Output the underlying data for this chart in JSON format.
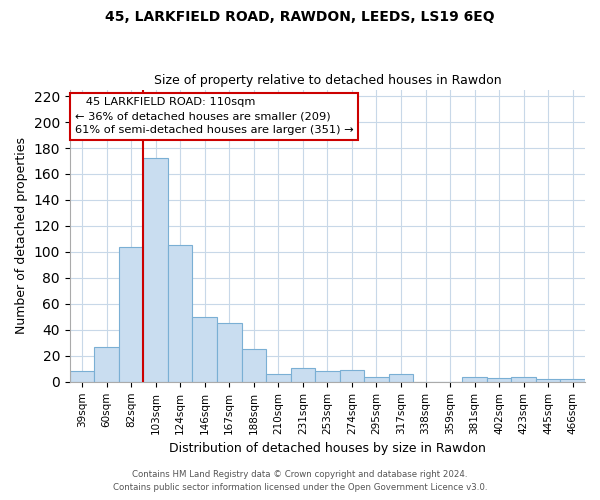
{
  "title": "45, LARKFIELD ROAD, RAWDON, LEEDS, LS19 6EQ",
  "subtitle": "Size of property relative to detached houses in Rawdon",
  "xlabel": "Distribution of detached houses by size in Rawdon",
  "ylabel": "Number of detached properties",
  "bar_labels": [
    "39sqm",
    "60sqm",
    "82sqm",
    "103sqm",
    "124sqm",
    "146sqm",
    "167sqm",
    "188sqm",
    "210sqm",
    "231sqm",
    "253sqm",
    "274sqm",
    "295sqm",
    "317sqm",
    "338sqm",
    "359sqm",
    "381sqm",
    "402sqm",
    "423sqm",
    "445sqm",
    "466sqm"
  ],
  "bar_values": [
    8,
    27,
    104,
    172,
    105,
    50,
    45,
    25,
    6,
    11,
    8,
    9,
    4,
    6,
    0,
    0,
    4,
    3,
    4,
    2,
    2
  ],
  "bar_color": "#c9ddf0",
  "bar_edge_color": "#7aafd4",
  "vline_x": 3.0,
  "vline_color": "#cc0000",
  "annotation_title": "45 LARKFIELD ROAD: 110sqm",
  "annotation_line1": "← 36% of detached houses are smaller (209)",
  "annotation_line2": "61% of semi-detached houses are larger (351) →",
  "annotation_box_color": "#ffffff",
  "annotation_box_edge": "#cc0000",
  "ylim": [
    0,
    225
  ],
  "yticks": [
    0,
    20,
    40,
    60,
    80,
    100,
    120,
    140,
    160,
    180,
    200,
    220
  ],
  "footer1": "Contains HM Land Registry data © Crown copyright and database right 2024.",
  "footer2": "Contains public sector information licensed under the Open Government Licence v3.0.",
  "background_color": "#ffffff",
  "grid_color": "#c8d8e8"
}
